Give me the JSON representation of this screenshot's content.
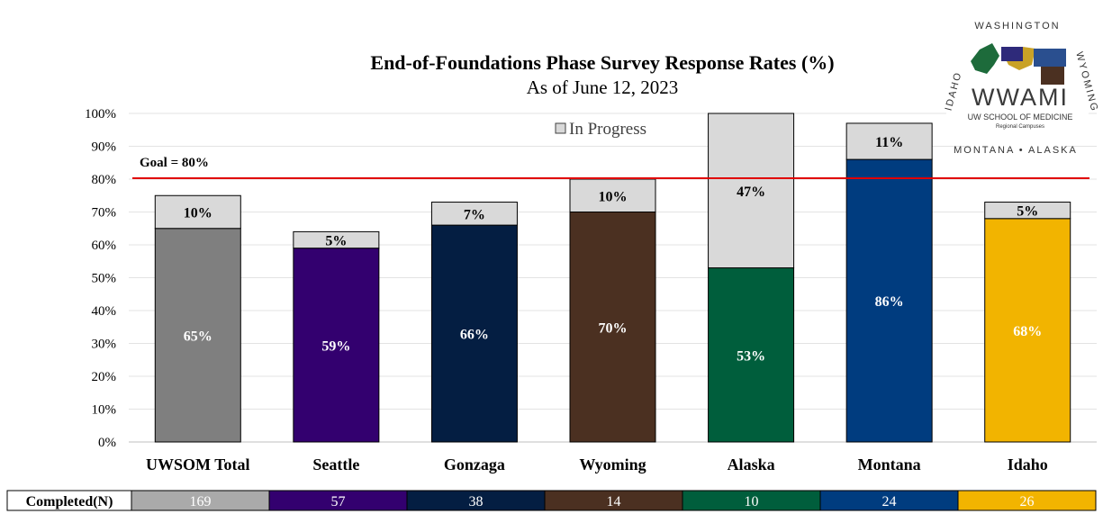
{
  "chart_data": {
    "type": "bar",
    "stacked": true,
    "title": "End-of-Foundations Phase Survey Response Rates (%)",
    "subtitle": "As of June 12, 2023",
    "categories": [
      "UWSOM Total",
      "Seattle",
      "Gonzaga",
      "Wyoming",
      "Alaska",
      "Montana",
      "Idaho"
    ],
    "series": [
      {
        "values": [
          65,
          59,
          66,
          70,
          53,
          86,
          68
        ],
        "labels": [
          "65%",
          "59%",
          "66%",
          "70%",
          "53%",
          "86%",
          "68%"
        ],
        "colors": [
          "#7f7f7f",
          "#33006f",
          "#041e42",
          "#4b3021",
          "#005e3c",
          "#003c7f",
          "#f2b400"
        ]
      },
      {
        "name": "In Progress",
        "values": [
          10,
          5,
          7,
          10,
          47,
          11,
          5
        ],
        "labels": [
          "10%",
          "5%",
          "7%",
          "10%",
          "47%",
          "11%",
          "5%"
        ],
        "color": "#d9d9d9"
      }
    ],
    "yticks": [
      "0%",
      "10%",
      "20%",
      "30%",
      "40%",
      "50%",
      "60%",
      "70%",
      "80%",
      "90%",
      "100%"
    ],
    "ylim": [
      0,
      100
    ],
    "grid": true,
    "goal": {
      "value": 80,
      "label": "Goal = 80%",
      "color": "#e00000"
    },
    "legend_position": "top-center"
  },
  "table": {
    "header": "Completed(N)",
    "values": [
      "169",
      "57",
      "38",
      "14",
      "10",
      "24",
      "26"
    ]
  },
  "logo": {
    "name": "WWAMI",
    "arc_top": "WASHINGTON",
    "arc_left": "IDAHO",
    "arc_right": "WYOMING",
    "arc_bottom": "MONTANA • ALASKA",
    "line1": "UW SCHOOL OF MEDICINE",
    "line2": "Regional Campuses"
  }
}
